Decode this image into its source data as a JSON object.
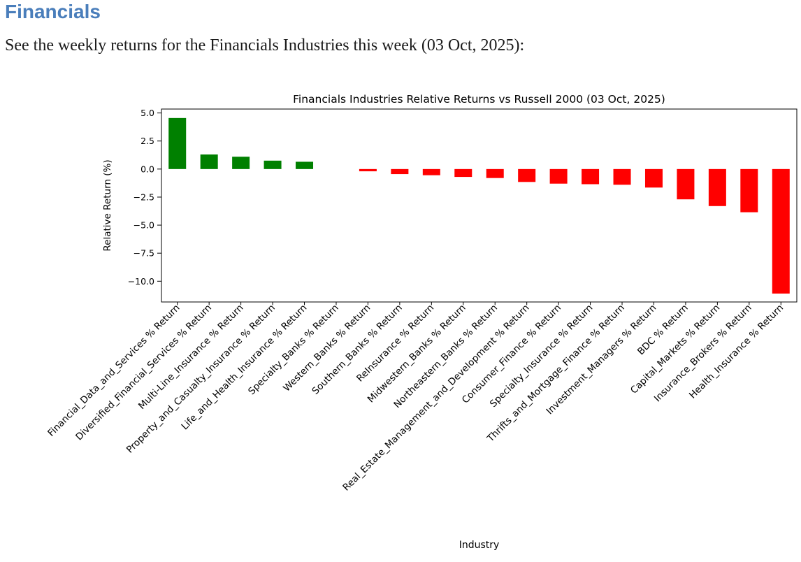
{
  "page": {
    "heading": "Financials",
    "description": "See the weekly returns for the Financials Industries this week (03 Oct, 2025):"
  },
  "colors": {
    "heading": "#4a7ebb",
    "body_text": "#1a1a1a",
    "axis": "#000000",
    "positive_bar": "#008000",
    "negative_bar": "#ff0000"
  },
  "chart_data": {
    "type": "bar",
    "title": "Financials Industries Relative Returns vs Russell 2000 (03 Oct, 2025)",
    "xlabel": "Industry",
    "ylabel": "Relative Return (%)",
    "ylim": [
      -11.85,
      5.35
    ],
    "yticks": [
      5.0,
      2.5,
      0.0,
      -2.5,
      -5.0,
      -7.5,
      -10.0
    ],
    "grid": false,
    "legend_position": "none",
    "x_tick_rotation": 45,
    "categories": [
      "Financial_Data_and_Services % Return",
      "Diversified_Financial_Services % Return",
      "Multi-Line_Insurance % Return",
      "Property_and_Casualty_Insurance % Return",
      "Life_and_Health_Insurance % Return",
      "Specialty_Banks % Return",
      "Western_Banks % Return",
      "Southern_Banks % Return",
      "ReInsurance % Return",
      "Midwestern_Banks % Return",
      "Northeastern_Banks % Return",
      "Real_Estate_Management_and_Development % Return",
      "Consumer_Finance % Return",
      "Specialty_Insurance % Return",
      "Thrifts_and_Mortgage_Finance % Return",
      "Investment_Managers % Return",
      "BDC % Return",
      "Capital_Markets % Return",
      "Insurance_Brokers % Return",
      "Health_Insurance % Return"
    ],
    "values": [
      4.55,
      1.3,
      1.1,
      0.75,
      0.65,
      0.0,
      -0.2,
      -0.45,
      -0.55,
      -0.7,
      -0.8,
      -1.15,
      -1.3,
      -1.35,
      -1.4,
      -1.65,
      -2.7,
      -3.3,
      -3.85,
      -11.1
    ]
  }
}
